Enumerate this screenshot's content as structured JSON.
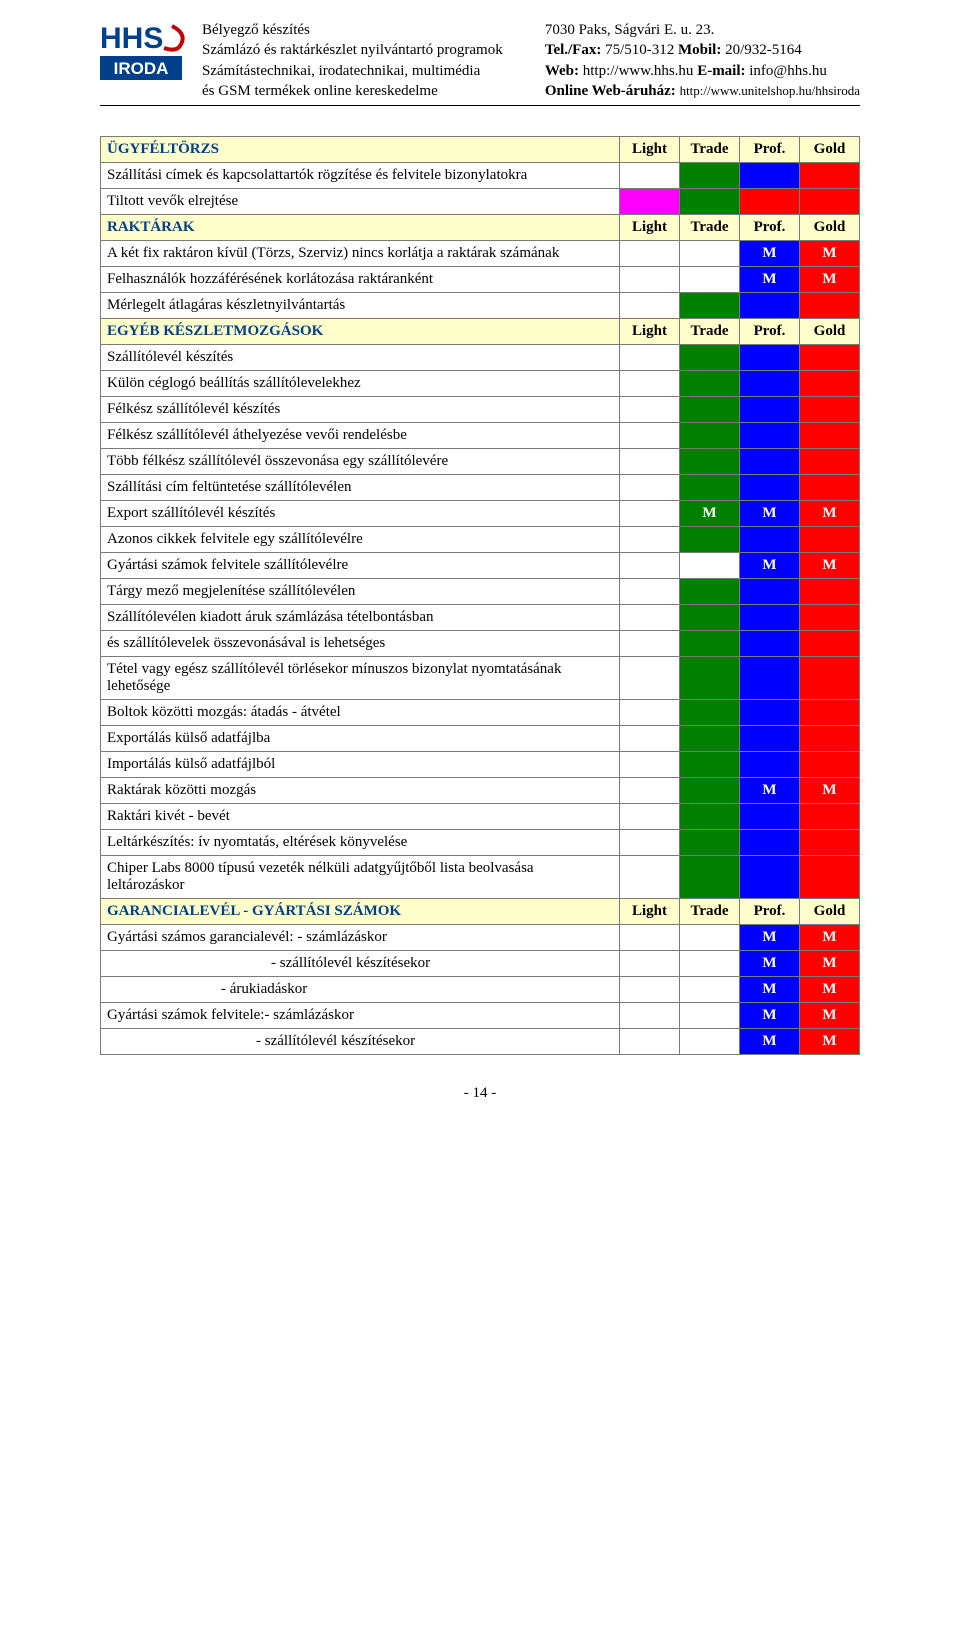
{
  "colors": {
    "headerBg": "#ffffcc",
    "sectionText": "#003f8a",
    "green": "#008000",
    "darkGreen": "#006400",
    "blue": "#0000ff",
    "red": "#ff0000",
    "magenta": "#ff00ff",
    "border": "#7a7a7a",
    "logoBlue": "#003f8a",
    "logoRed": "#c00000"
  },
  "header": {
    "left": [
      "Bélyegző készítés",
      "Számlázó és raktárkészlet nyilvántartó programok",
      "Számítástechnikai, irodatechnikai, multimédia",
      "és GSM termékek online kereskedelme"
    ],
    "right": [
      {
        "plain": "7030 Paks, Ságvári E. u. 23."
      },
      {
        "bold": "Tel./Fax:",
        "rest": " 75/510-312 ",
        "bold2": "Mobil:",
        "rest2": " 20/932-5164"
      },
      {
        "bold": "Web:",
        "rest": " http://www.hhs.hu ",
        "bold2": "E-mail:",
        "rest2": " info@hhs.hu"
      },
      {
        "bold": "Online Web-áruház: ",
        "small": "http://www.unitelshop.hu/hhsiroda"
      }
    ],
    "logoTop": "HHS",
    "logoBottom": "IRODA"
  },
  "columns": [
    "Light",
    "Trade",
    "Prof.",
    "Gold"
  ],
  "rows": [
    {
      "type": "section",
      "label": "ÜGYFÉLTÖRZS"
    },
    {
      "type": "row",
      "label": "Szállítási címek és kapcsolattartók rögzítése és felvitele bizonylatokra",
      "cells": [
        "",
        "green",
        "blue",
        "red"
      ]
    },
    {
      "type": "row",
      "label": "Tiltott vevők elrejtése",
      "cells": [
        "magenta",
        "green",
        "red",
        "red"
      ]
    },
    {
      "type": "section",
      "label": "RAKTÁRAK"
    },
    {
      "type": "row",
      "label": "A két fix raktáron kívül (Törzs, Szerviz) nincs korlátja a raktárak számának",
      "cells": [
        "",
        "",
        "blue:M",
        "red:M"
      ]
    },
    {
      "type": "row",
      "label": "Felhasználók hozzáférésének korlátozása raktáranként",
      "cells": [
        "",
        "",
        "blue:M",
        "red:M"
      ]
    },
    {
      "type": "row",
      "label": "Mérlegelt átlagáras készletnyilvántartás",
      "cells": [
        "",
        "green",
        "blue",
        "red"
      ]
    },
    {
      "type": "section",
      "label": "EGYÉB KÉSZLETMOZGÁSOK"
    },
    {
      "type": "row",
      "label": "Szállítólevél készítés",
      "cells": [
        "",
        "green",
        "blue",
        "red"
      ]
    },
    {
      "type": "row",
      "label": "Külön céglogó beállítás szállítólevelekhez",
      "cells": [
        "",
        "green",
        "blue",
        "red"
      ]
    },
    {
      "type": "row",
      "label": "Félkész szállítólevél készítés",
      "cells": [
        "",
        "green",
        "blue",
        "red"
      ]
    },
    {
      "type": "row",
      "label": "Félkész szállítólevél áthelyezése vevői rendelésbe",
      "cells": [
        "",
        "green",
        "blue",
        "red"
      ]
    },
    {
      "type": "row",
      "label": "Több félkész szállítólevél összevonása egy szállítólevére",
      "cells": [
        "",
        "green",
        "blue",
        "red"
      ]
    },
    {
      "type": "row",
      "label": "Szállítási cím feltüntetése szállítólevélen",
      "cells": [
        "",
        "green",
        "blue",
        "red"
      ]
    },
    {
      "type": "row",
      "label": "Export szállítólevél készítés",
      "cells": [
        "",
        "green:M",
        "blue:M",
        "red:M"
      ]
    },
    {
      "type": "row",
      "label": "Azonos cikkek felvitele egy szállítólevélre",
      "cells": [
        "",
        "green",
        "blue",
        "red"
      ]
    },
    {
      "type": "row",
      "label": "Gyártási számok felvitele szállítólevélre",
      "cells": [
        "",
        "",
        "blue:M",
        "red:M"
      ]
    },
    {
      "type": "row",
      "label": "Tárgy mező megjelenítése szállítólevélen",
      "cells": [
        "",
        "green",
        "blue",
        "red"
      ]
    },
    {
      "type": "row",
      "label": "Szállítólevélen kiadott áruk számlázása tételbontásban",
      "cells": [
        "",
        "green",
        "blue",
        "red"
      ]
    },
    {
      "type": "row",
      "label": "és szállítólevelek összevonásával is lehetséges",
      "cells": [
        "",
        "green",
        "blue",
        "red"
      ]
    },
    {
      "type": "row",
      "label": "Tétel vagy egész szállítólevél törlésekor mínuszos bizonylat nyomtatásának lehetősége",
      "cells": [
        "",
        "green",
        "blue",
        "red"
      ]
    },
    {
      "type": "row",
      "label": "Boltok közötti mozgás: átadás - átvétel",
      "cells": [
        "",
        "green",
        "blue",
        "red"
      ]
    },
    {
      "type": "row",
      "label": "Exportálás külső adatfájlba",
      "cells": [
        "",
        "green",
        "blue",
        "red"
      ]
    },
    {
      "type": "row",
      "label": "Importálás külső adatfájlból",
      "cells": [
        "",
        "green",
        "blue",
        "red"
      ]
    },
    {
      "type": "row",
      "label": "Raktárak közötti mozgás",
      "cells": [
        "",
        "green",
        "blue:M",
        "red:M"
      ]
    },
    {
      "type": "row",
      "label": "Raktári kivét - bevét",
      "cells": [
        "",
        "green",
        "blue",
        "red"
      ]
    },
    {
      "type": "row",
      "label": "Leltárkészítés: ív nyomtatás, eltérések könyvelése",
      "cells": [
        "",
        "green",
        "blue",
        "red"
      ]
    },
    {
      "type": "row",
      "label": "Chiper Labs 8000 típusú vezeték nélküli adatgyűjtőből lista beolvasása leltározáskor",
      "cells": [
        "",
        "green",
        "blue",
        "red"
      ]
    },
    {
      "type": "section",
      "label": "GARANCIALEVÉL - GYÁRTÁSI SZÁMOK"
    },
    {
      "type": "row",
      "label": "Gyártási számos garancialevél: - számlázáskor",
      "cells": [
        "",
        "",
        "blue:M",
        "red:M"
      ]
    },
    {
      "type": "row",
      "label": "- szállítólevél készítésekor",
      "indent": "indent1",
      "cells": [
        "",
        "",
        "blue:M",
        "red:M"
      ]
    },
    {
      "type": "row",
      "label": "- árukiadáskor",
      "indent": "indent2",
      "cells": [
        "",
        "",
        "blue:M",
        "red:M"
      ]
    },
    {
      "type": "row",
      "label": "Gyártási számok felvitele:- számlázáskor",
      "cells": [
        "",
        "",
        "blue:M",
        "red:M"
      ]
    },
    {
      "type": "row",
      "label": "- szállítólevél készítésekor",
      "indent": "indent3",
      "cells": [
        "",
        "",
        "blue:M",
        "red:M"
      ]
    }
  ],
  "pageNumber": "- 14 -"
}
